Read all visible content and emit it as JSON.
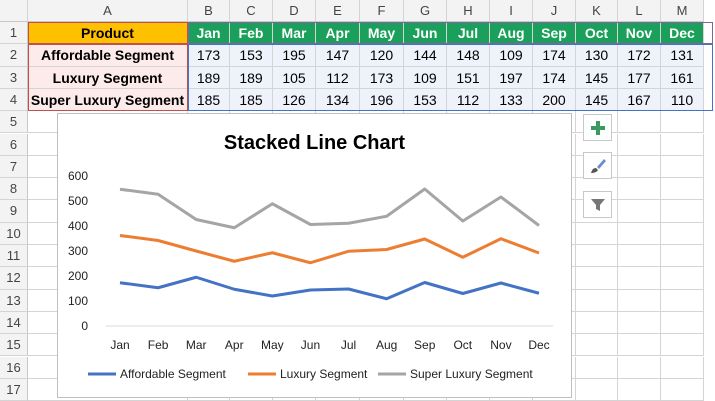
{
  "sheet": {
    "columns": [
      "A",
      "B",
      "C",
      "D",
      "E",
      "F",
      "G",
      "H",
      "I",
      "J",
      "K",
      "L",
      "M"
    ],
    "rows": [
      "1",
      "2",
      "3",
      "4",
      "5",
      "6",
      "7",
      "8",
      "9",
      "10",
      "11",
      "12",
      "13",
      "14",
      "15",
      "16",
      "17"
    ],
    "table": {
      "header_label": "Product",
      "months": [
        "Jan",
        "Feb",
        "Mar",
        "Apr",
        "May",
        "Jun",
        "Jul",
        "Aug",
        "Sep",
        "Oct",
        "Nov",
        "Dec"
      ],
      "rows": [
        {
          "name": "Affordable Segment",
          "values": [
            "173",
            "153",
            "195",
            "147",
            "120",
            "144",
            "148",
            "109",
            "174",
            "130",
            "172",
            "131"
          ]
        },
        {
          "name": "Luxury Segment",
          "values": [
            "189",
            "189",
            "105",
            "112",
            "173",
            "109",
            "151",
            "197",
            "174",
            "145",
            "177",
            "161"
          ]
        },
        {
          "name": "Super Luxury Segment",
          "values": [
            "185",
            "185",
            "126",
            "134",
            "196",
            "153",
            "112",
            "133",
            "200",
            "145",
            "167",
            "110"
          ]
        }
      ]
    }
  },
  "chart": {
    "title": "Stacked Line Chart",
    "legend": [
      "Affordable Segment",
      "Luxury Segment",
      "Super Luxury Segment"
    ]
  },
  "side_buttons": [
    "add-chart-element-icon",
    "chart-styles-brush-icon",
    "chart-filter-funnel-icon"
  ],
  "colors": {
    "affordable": "#4472c4",
    "luxury": "#ed7d31",
    "super_luxury": "#a5a5a5",
    "header_green": "#1aa05a",
    "product_header": "#ffc000"
  },
  "chart_data": {
    "type": "line",
    "stacked": true,
    "title": "Stacked Line Chart",
    "categories": [
      "Jan",
      "Feb",
      "Mar",
      "Apr",
      "May",
      "Jun",
      "Jul",
      "Aug",
      "Sep",
      "Oct",
      "Nov",
      "Dec"
    ],
    "series": [
      {
        "name": "Affordable Segment",
        "values": [
          173,
          153,
          195,
          147,
          120,
          144,
          148,
          109,
          174,
          130,
          172,
          131
        ]
      },
      {
        "name": "Luxury Segment",
        "values": [
          189,
          189,
          105,
          112,
          173,
          109,
          151,
          197,
          174,
          145,
          177,
          161
        ]
      },
      {
        "name": "Super Luxury Segment",
        "values": [
          185,
          185,
          126,
          134,
          196,
          153,
          112,
          133,
          200,
          145,
          167,
          110
        ]
      }
    ],
    "ylim": [
      0,
      600
    ],
    "yticks": [
      0,
      100,
      200,
      300,
      400,
      500,
      600
    ],
    "legend_position": "bottom",
    "grid": false
  }
}
